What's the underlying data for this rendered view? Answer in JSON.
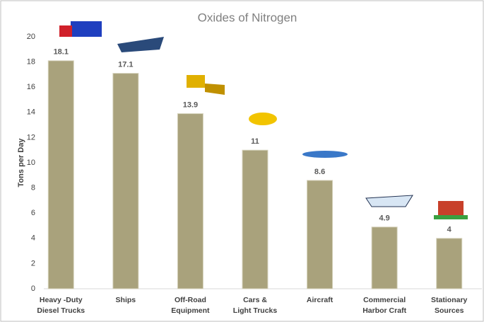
{
  "chart_data": {
    "type": "bar",
    "title": "Oxides of Nitrogen",
    "y_label": "Tons per Day",
    "categories": [
      "Heavy -Duty\nDiesel Trucks",
      "Ships",
      "Off-Road\nEquipment",
      "Cars &\nLight Trucks",
      "Aircraft",
      "Commercial\nHarbor Craft",
      "Stationary\nSources"
    ],
    "values": [
      18.1,
      17.1,
      13.9,
      11,
      8.6,
      4.9,
      4
    ],
    "color": "#a9a27c",
    "ylim": [
      0,
      20
    ],
    "yticks": [
      0,
      2,
      4,
      6,
      8,
      10,
      12,
      14,
      16,
      18,
      20
    ],
    "grid": false
  }
}
